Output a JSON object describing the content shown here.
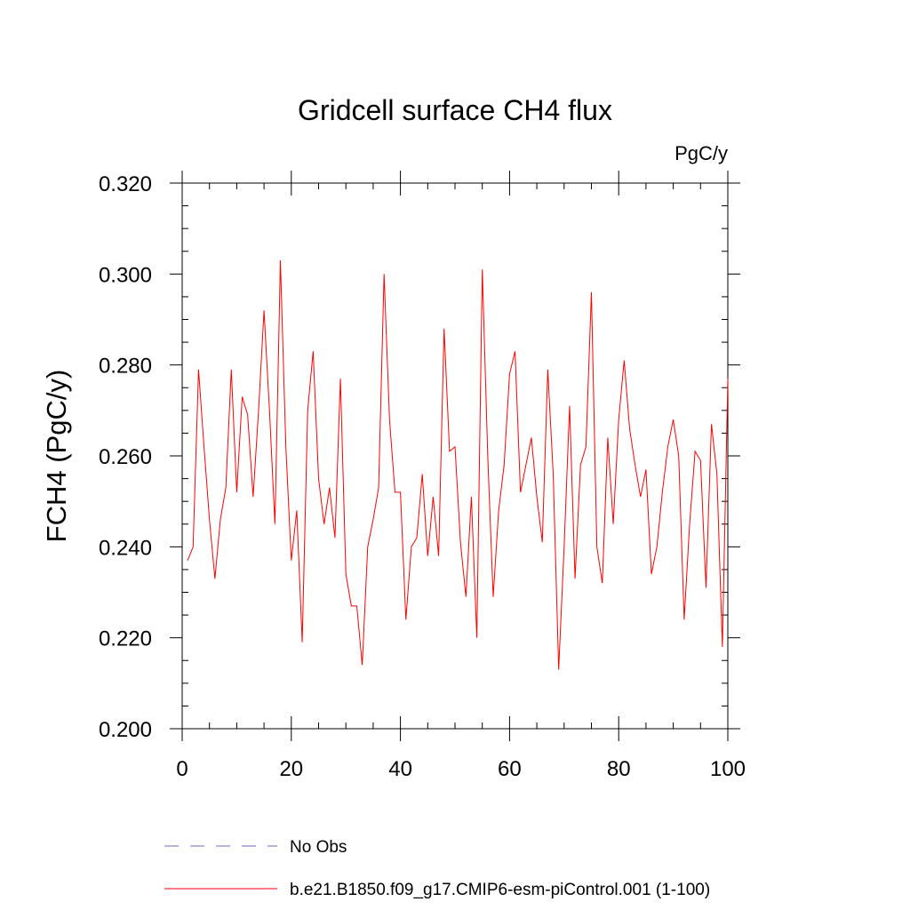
{
  "chart_data": {
    "type": "line",
    "title": "Gridcell surface CH4 flux",
    "units_label": "PgC/y",
    "ylabel": "FCH4  (PgC/y)",
    "xlabel": "",
    "xlim": [
      0,
      100
    ],
    "ylim": [
      0.2,
      0.32
    ],
    "x_ticks": [
      0,
      20,
      40,
      60,
      80,
      100
    ],
    "x_tick_labels": [
      "0",
      "20",
      "40",
      "60",
      "80",
      "100"
    ],
    "y_ticks": [
      0.2,
      0.22,
      0.24,
      0.26,
      0.28,
      0.3,
      0.32
    ],
    "y_tick_labels": [
      "0.200",
      "0.220",
      "0.240",
      "0.260",
      "0.280",
      "0.300",
      "0.320"
    ],
    "grid": false,
    "legend_position": "bottom",
    "legend": [
      {
        "label": "No Obs",
        "color": "#6a6acc",
        "style": "dashed"
      },
      {
        "label": "b.e21.B1850.f09_g17.CMIP6-esm-piControl.001 (1-100)",
        "color": "#ff0000",
        "style": "solid"
      }
    ],
    "series": [
      {
        "name": "b.e21.B1850.f09_g17.CMIP6-esm-piControl.001 (1-100)",
        "color": "#ff0000",
        "x": [
          1,
          2,
          3,
          4,
          5,
          6,
          7,
          8,
          9,
          10,
          11,
          12,
          13,
          14,
          15,
          16,
          17,
          18,
          19,
          20,
          21,
          22,
          23,
          24,
          25,
          26,
          27,
          28,
          29,
          30,
          31,
          32,
          33,
          34,
          35,
          36,
          37,
          38,
          39,
          40,
          41,
          42,
          43,
          44,
          45,
          46,
          47,
          48,
          49,
          50,
          51,
          52,
          53,
          54,
          55,
          56,
          57,
          58,
          59,
          60,
          61,
          62,
          63,
          64,
          65,
          66,
          67,
          68,
          69,
          70,
          71,
          72,
          73,
          74,
          75,
          76,
          77,
          78,
          79,
          80,
          81,
          82,
          83,
          84,
          85,
          86,
          87,
          88,
          89,
          90,
          91,
          92,
          93,
          94,
          95,
          96,
          97,
          98,
          99,
          100
        ],
        "y": [
          0.237,
          0.24,
          0.279,
          0.262,
          0.246,
          0.233,
          0.246,
          0.253,
          0.279,
          0.252,
          0.273,
          0.269,
          0.251,
          0.27,
          0.292,
          0.27,
          0.245,
          0.303,
          0.262,
          0.237,
          0.248,
          0.219,
          0.27,
          0.283,
          0.255,
          0.245,
          0.253,
          0.242,
          0.277,
          0.234,
          0.227,
          0.227,
          0.214,
          0.24,
          0.246,
          0.253,
          0.3,
          0.268,
          0.252,
          0.252,
          0.224,
          0.24,
          0.242,
          0.256,
          0.238,
          0.251,
          0.238,
          0.288,
          0.261,
          0.262,
          0.241,
          0.229,
          0.251,
          0.22,
          0.301,
          0.26,
          0.229,
          0.248,
          0.258,
          0.278,
          0.283,
          0.252,
          0.258,
          0.264,
          0.251,
          0.241,
          0.279,
          0.256,
          0.213,
          0.24,
          0.271,
          0.233,
          0.258,
          0.262,
          0.296,
          0.24,
          0.232,
          0.264,
          0.245,
          0.268,
          0.281,
          0.266,
          0.258,
          0.251,
          0.257,
          0.234,
          0.24,
          0.252,
          0.262,
          0.268,
          0.26,
          0.224,
          0.245,
          0.261,
          0.259,
          0.231,
          0.267,
          0.256,
          0.218,
          0.277
        ]
      }
    ]
  }
}
